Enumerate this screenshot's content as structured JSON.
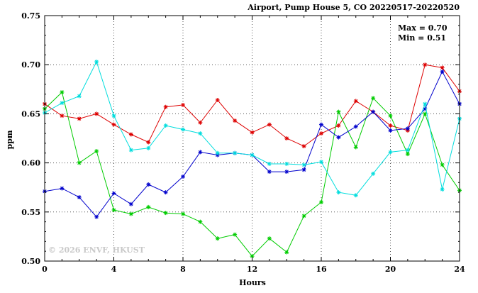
{
  "title": "Airport, Pump House 5, CO 20220517-20220520",
  "annotations": {
    "max": "Max = 0.70",
    "min": "Min = 0.51"
  },
  "watermark": "© 2026 ENVF, HKUST",
  "chart_data": {
    "type": "line",
    "title": "Airport, Pump House 5, CO 20220517-20220520",
    "xlabel": "Hours",
    "ylabel": "ppm",
    "xlim": [
      0,
      24
    ],
    "ylim": [
      0.5,
      0.75
    ],
    "xticks": [
      0,
      4,
      8,
      12,
      16,
      20,
      24
    ],
    "yticks": [
      0.5,
      0.55,
      0.6,
      0.65,
      0.7,
      0.75
    ],
    "grid": true,
    "legend": "none",
    "marker": "asterisk",
    "x": [
      0,
      1,
      2,
      3,
      4,
      5,
      6,
      7,
      8,
      9,
      10,
      11,
      12,
      13,
      14,
      15,
      16,
      17,
      18,
      19,
      20,
      21,
      22,
      23,
      24
    ],
    "series": [
      {
        "name": "series-red",
        "color": "#dd0000",
        "values": [
          0.66,
          0.648,
          0.645,
          0.65,
          0.639,
          0.629,
          0.621,
          0.657,
          0.659,
          0.641,
          0.664,
          0.643,
          0.631,
          0.639,
          0.625,
          0.617,
          0.63,
          0.638,
          0.663,
          0.652,
          0.638,
          0.633,
          0.7,
          0.697,
          0.673
        ]
      },
      {
        "name": "series-green",
        "color": "#00cc00",
        "values": [
          0.655,
          0.672,
          0.6,
          0.612,
          0.552,
          0.548,
          0.555,
          0.549,
          0.548,
          0.54,
          0.523,
          0.527,
          0.505,
          0.523,
          0.509,
          0.546,
          0.56,
          0.652,
          0.616,
          0.666,
          0.648,
          0.609,
          0.65,
          0.598,
          0.572
        ]
      },
      {
        "name": "series-blue",
        "color": "#0000cc",
        "values": [
          0.571,
          0.574,
          0.565,
          0.545,
          0.569,
          0.558,
          0.578,
          0.57,
          0.586,
          0.611,
          0.608,
          0.61,
          0.608,
          0.591,
          0.591,
          0.593,
          0.639,
          0.626,
          0.637,
          0.652,
          0.633,
          0.635,
          0.655,
          0.693,
          0.66
        ]
      },
      {
        "name": "series-cyan",
        "color": "#00dddd",
        "values": [
          0.651,
          0.661,
          0.668,
          0.703,
          0.648,
          0.613,
          0.615,
          0.638,
          0.634,
          0.63,
          0.61,
          0.61,
          0.608,
          0.599,
          0.599,
          0.598,
          0.601,
          0.57,
          0.567,
          0.589,
          0.611,
          0.613,
          0.66,
          0.573,
          0.645
        ]
      }
    ]
  }
}
